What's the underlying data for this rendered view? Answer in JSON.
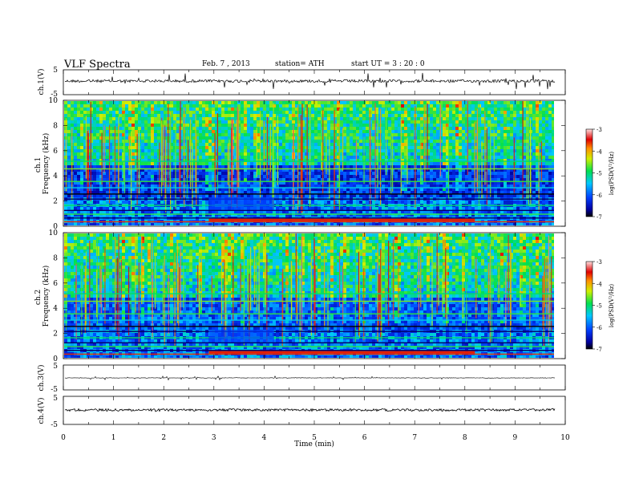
{
  "header": {
    "title": "VLF  Spectra",
    "date": "Feb. 7  , 2013",
    "station": "station= ATH",
    "start": "start  UT  =   3  : 20 : 0"
  },
  "chart_data": [
    {
      "type": "line",
      "name": "ch1-waveform",
      "ylabel": "ch.1(V)",
      "ylim": [
        -5,
        5
      ],
      "yticks": [
        "5",
        "-5"
      ],
      "xlim": [
        0,
        10
      ],
      "xlabel": "",
      "data_extent_min": 9.8
    },
    {
      "type": "heatmap",
      "name": "ch1-spectrogram",
      "ylabel": "ch.1\nFrequency  (kHz)",
      "xlim": [
        0,
        10
      ],
      "ylim": [
        0,
        10
      ],
      "yticks": [
        "0",
        "2",
        "4",
        "6",
        "8",
        "10"
      ],
      "data_extent_min": 9.8,
      "colorbar": {
        "label": "log(PSD(V²/Hz)",
        "range": [
          -7,
          -3
        ],
        "ticks": [
          "-3",
          "-4",
          "-5",
          "-6",
          "-7"
        ]
      }
    },
    {
      "type": "heatmap",
      "name": "ch2-spectrogram",
      "ylabel": "ch.2\nFrequency  (kHz)",
      "xlim": [
        0,
        10
      ],
      "ylim": [
        0,
        10
      ],
      "yticks": [
        "0",
        "2",
        "4",
        "6",
        "8",
        "10"
      ],
      "data_extent_min": 9.8,
      "colorbar": {
        "label": "log(PSD(V²/Hz)",
        "range": [
          -7,
          -3
        ],
        "ticks": [
          "-3",
          "-4",
          "-5",
          "-6",
          "-7"
        ]
      }
    },
    {
      "type": "line",
      "name": "ch3-waveform",
      "ylabel": "ch.3(V)",
      "ylim": [
        -5,
        5
      ],
      "yticks": [
        "5",
        "-5"
      ],
      "xlim": [
        0,
        10
      ],
      "data_extent_min": 9.8
    },
    {
      "type": "line",
      "name": "ch4-waveform",
      "ylabel": "ch.4(V)",
      "ylim": [
        -5,
        5
      ],
      "yticks": [
        "5",
        "-5"
      ],
      "xlim": [
        0,
        10
      ],
      "xlabel": "Time  (min)",
      "xticks": [
        "0",
        "1",
        "2",
        "3",
        "4",
        "5",
        "6",
        "7",
        "8",
        "9",
        "10"
      ],
      "data_extent_min": 9.8
    }
  ]
}
